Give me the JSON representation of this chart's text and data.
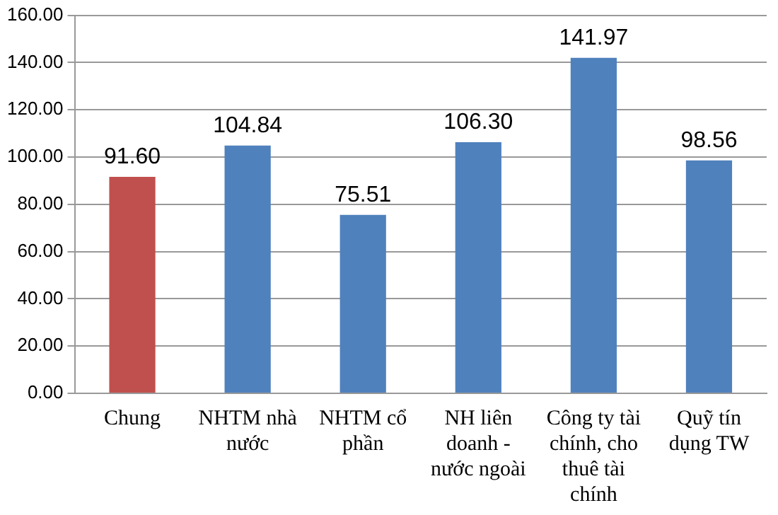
{
  "chart_data": {
    "type": "bar",
    "categories": [
      "Chung",
      "NHTM nhà nước",
      "NHTM cổ phần",
      "NH liên doanh - nước ngoài",
      "Công ty tài chính, cho thuê tài chính",
      "Quỹ tín dụng TW"
    ],
    "values": [
      91.6,
      104.84,
      75.51,
      106.3,
      141.97,
      98.56
    ],
    "value_labels": [
      "91.60",
      "104.84",
      "75.51",
      "106.30",
      "141.97",
      "98.56"
    ],
    "colors": [
      "#c0504d",
      "#4f81bd",
      "#4f81bd",
      "#4f81bd",
      "#4f81bd",
      "#4f81bd"
    ],
    "ylim": [
      0,
      160
    ],
    "yticks": [
      {
        "value": 0,
        "label": "0.00"
      },
      {
        "value": 20,
        "label": "20.00"
      },
      {
        "value": 40,
        "label": "40.00"
      },
      {
        "value": 60,
        "label": "60.00"
      },
      {
        "value": 80,
        "label": "80.00"
      },
      {
        "value": 100,
        "label": "100.00"
      },
      {
        "value": 120,
        "label": "120.00"
      },
      {
        "value": 140,
        "label": "140.00"
      },
      {
        "value": 160,
        "label": "160.00"
      }
    ],
    "grid": "y",
    "legend": false
  }
}
